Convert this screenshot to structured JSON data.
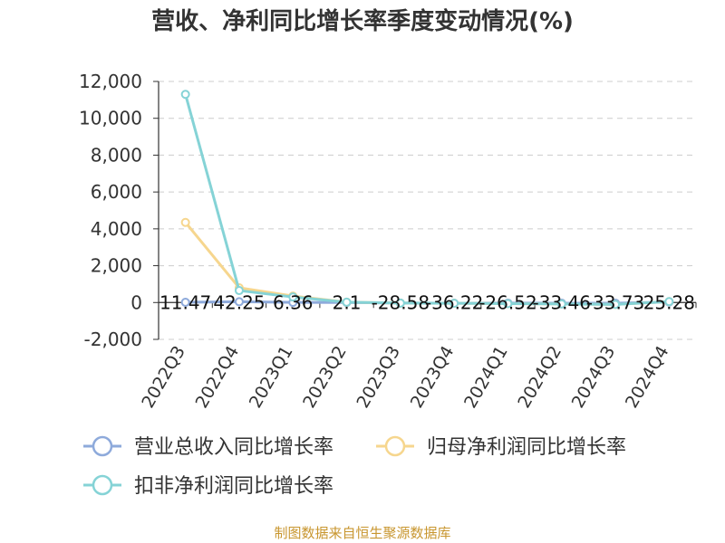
{
  "chart_data": {
    "type": "line",
    "title": "营收、净利同比增长率季度变动情况(%)",
    "categories": [
      "2022Q3",
      "2022Q4",
      "2023Q1",
      "2023Q2",
      "2023Q3",
      "2023Q4",
      "2024Q1",
      "2024Q2",
      "2024Q3",
      "2024Q4"
    ],
    "ylim": [
      -2000,
      12000
    ],
    "yticks": [
      "-2,000",
      "0",
      "2,000",
      "4,000",
      "6,000",
      "8,000",
      "10,000",
      "12,000"
    ],
    "grid": true,
    "legend_position": "bottom",
    "series": [
      {
        "name": "营业总收入同比增长率",
        "color": "#8eaadb",
        "values": [
          11.47,
          42.25,
          6.36,
          2.1,
          -28.58,
          -36.22,
          -26.52,
          -33.46,
          -33.73,
          25.28
        ],
        "labels": [
          "11.47",
          "42.25",
          "6.36",
          "2.1",
          "-28.58",
          "-36.22",
          "-26.52",
          "-33.46",
          "-33.73",
          "25.28"
        ]
      },
      {
        "name": "归母净利润同比增长率",
        "color": "#f6d68e",
        "values": [
          4350,
          800,
          350,
          20,
          -30,
          -40,
          -60,
          -80,
          -100,
          50
        ]
      },
      {
        "name": "扣非净利润同比增长率",
        "color": "#85d3d6",
        "values": [
          11300,
          650,
          300,
          20,
          -30,
          -40,
          -60,
          -80,
          -100,
          50
        ]
      }
    ]
  },
  "source": "制图数据来自恒生聚源数据库"
}
